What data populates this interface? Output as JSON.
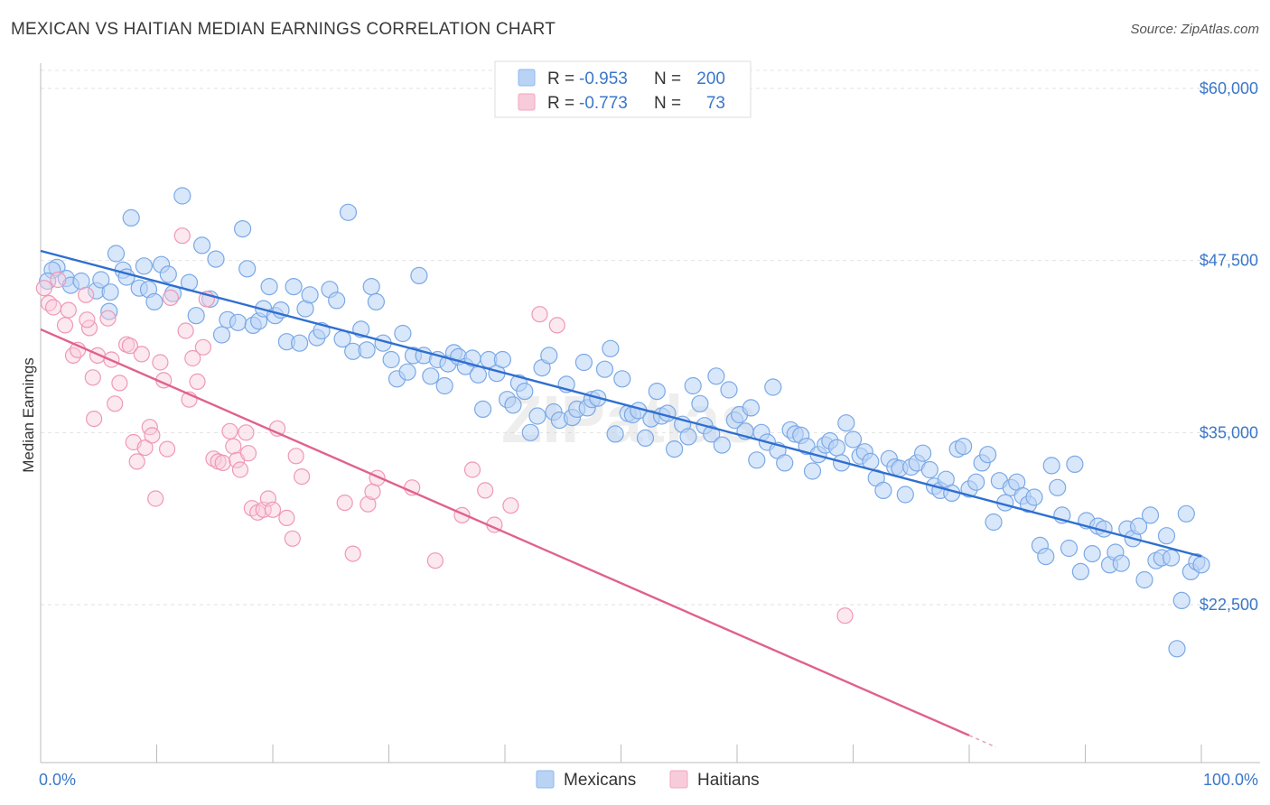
{
  "title": "MEXICAN VS HAITIAN MEDIAN EARNINGS CORRELATION CHART",
  "source": "Source: ZipAtlas.com",
  "watermark": "ZIPatlas",
  "chart_data": {
    "type": "scatter",
    "ylabel": "Median Earnings",
    "xlim": [
      0,
      100
    ],
    "ylim": [
      12000,
      62000
    ],
    "x_tick_labels": {
      "left": "0.0%",
      "right": "100.0%"
    },
    "y_ticks": [
      {
        "value": 60000,
        "label": "$60,000"
      },
      {
        "value": 47500,
        "label": "$47,500"
      },
      {
        "value": 35000,
        "label": "$35,000"
      },
      {
        "value": 22500,
        "label": "$22,500"
      }
    ],
    "grid": true,
    "legend_position": "top-center",
    "legend": [
      {
        "r_label": "R =",
        "r_value": "-0.953",
        "n_label": "N =",
        "n_value": "200"
      },
      {
        "r_label": "R =",
        "r_value": "-0.773",
        "n_label": "N =",
        "n_value": "73"
      }
    ],
    "series": [
      {
        "name": "Mexicans",
        "color": "#8ab8f0",
        "line_color": "#2f6fd0",
        "trend": {
          "x0": 0,
          "y0": 48200,
          "x1": 100,
          "y1": 26000
        },
        "points": [
          [
            1.4,
            47.0
          ],
          [
            2.2,
            46.2
          ],
          [
            2.6,
            45.7
          ],
          [
            3.5,
            46.0
          ],
          [
            4.8,
            45.3
          ],
          [
            5.2,
            46.1
          ],
          [
            5.9,
            43.8
          ],
          [
            6.0,
            45.2
          ],
          [
            6.5,
            48.0
          ],
          [
            7.1,
            46.8
          ],
          [
            7.4,
            46.3
          ],
          [
            7.8,
            50.6
          ],
          [
            8.5,
            45.5
          ],
          [
            8.9,
            47.1
          ],
          [
            9.3,
            45.4
          ],
          [
            9.8,
            44.5
          ],
          [
            10.4,
            47.2
          ],
          [
            11.0,
            46.5
          ],
          [
            11.4,
            45.1
          ],
          [
            12.2,
            52.2
          ],
          [
            12.8,
            45.9
          ],
          [
            13.4,
            43.5
          ],
          [
            13.9,
            48.6
          ],
          [
            14.6,
            44.7
          ],
          [
            15.1,
            47.6
          ],
          [
            15.6,
            42.1
          ],
          [
            16.1,
            43.2
          ],
          [
            17.0,
            43.0
          ],
          [
            17.4,
            49.8
          ],
          [
            17.8,
            46.9
          ],
          [
            18.3,
            42.8
          ],
          [
            18.8,
            43.1
          ],
          [
            19.2,
            44.0
          ],
          [
            19.7,
            45.6
          ],
          [
            20.2,
            43.5
          ],
          [
            20.7,
            43.9
          ],
          [
            21.2,
            41.6
          ],
          [
            21.8,
            45.6
          ],
          [
            22.3,
            41.5
          ],
          [
            22.8,
            44.0
          ],
          [
            23.2,
            45.0
          ],
          [
            23.8,
            41.9
          ],
          [
            24.2,
            42.4
          ],
          [
            24.9,
            45.4
          ],
          [
            25.5,
            44.6
          ],
          [
            26.0,
            41.8
          ],
          [
            26.5,
            51.0
          ],
          [
            26.9,
            40.9
          ],
          [
            27.6,
            42.5
          ],
          [
            28.1,
            41.0
          ],
          [
            28.5,
            45.6
          ],
          [
            28.9,
            44.5
          ],
          [
            29.5,
            41.5
          ],
          [
            30.2,
            40.3
          ],
          [
            30.7,
            38.9
          ],
          [
            31.2,
            42.2
          ],
          [
            31.6,
            39.4
          ],
          [
            32.1,
            40.6
          ],
          [
            32.6,
            46.4
          ],
          [
            33.0,
            40.6
          ],
          [
            33.6,
            39.1
          ],
          [
            34.2,
            40.3
          ],
          [
            34.8,
            38.4
          ],
          [
            35.1,
            40.0
          ],
          [
            35.6,
            40.8
          ],
          [
            36.0,
            40.5
          ],
          [
            36.6,
            39.8
          ],
          [
            37.2,
            40.4
          ],
          [
            37.7,
            39.2
          ],
          [
            38.1,
            36.7
          ],
          [
            38.6,
            40.3
          ],
          [
            39.3,
            39.3
          ],
          [
            39.8,
            40.3
          ],
          [
            40.2,
            37.4
          ],
          [
            40.7,
            37.0
          ],
          [
            41.2,
            38.6
          ],
          [
            41.7,
            38.0
          ],
          [
            42.2,
            35.0
          ],
          [
            42.8,
            36.2
          ],
          [
            43.2,
            39.7
          ],
          [
            43.8,
            40.6
          ],
          [
            44.2,
            36.5
          ],
          [
            44.7,
            35.9
          ],
          [
            45.3,
            38.5
          ],
          [
            45.8,
            36.1
          ],
          [
            46.2,
            36.7
          ],
          [
            46.8,
            40.1
          ],
          [
            47.1,
            36.8
          ],
          [
            47.5,
            37.4
          ],
          [
            48.0,
            37.5
          ],
          [
            48.6,
            39.6
          ],
          [
            49.1,
            41.1
          ],
          [
            49.5,
            34.9
          ],
          [
            50.1,
            38.9
          ],
          [
            50.6,
            36.4
          ],
          [
            51.0,
            36.3
          ],
          [
            51.5,
            36.6
          ],
          [
            52.1,
            34.6
          ],
          [
            52.6,
            36.0
          ],
          [
            53.1,
            38.0
          ],
          [
            53.5,
            36.2
          ],
          [
            54.0,
            36.4
          ],
          [
            54.6,
            33.8
          ],
          [
            55.3,
            35.6
          ],
          [
            55.8,
            34.7
          ],
          [
            56.2,
            38.4
          ],
          [
            56.8,
            37.1
          ],
          [
            57.2,
            35.5
          ],
          [
            57.8,
            34.9
          ],
          [
            58.2,
            39.1
          ],
          [
            58.7,
            34.1
          ],
          [
            59.3,
            38.1
          ],
          [
            59.8,
            35.9
          ],
          [
            60.2,
            36.3
          ],
          [
            60.7,
            35.1
          ],
          [
            61.2,
            36.8
          ],
          [
            61.7,
            33.0
          ],
          [
            62.1,
            35.0
          ],
          [
            62.6,
            34.3
          ],
          [
            63.1,
            38.3
          ],
          [
            63.5,
            33.7
          ],
          [
            64.1,
            32.8
          ],
          [
            64.6,
            35.2
          ],
          [
            65.0,
            34.9
          ],
          [
            65.5,
            34.8
          ],
          [
            66.0,
            34.0
          ],
          [
            66.5,
            32.2
          ],
          [
            67.0,
            33.4
          ],
          [
            67.6,
            34.1
          ],
          [
            68.0,
            34.4
          ],
          [
            68.6,
            33.9
          ],
          [
            69.0,
            32.8
          ],
          [
            69.4,
            35.7
          ],
          [
            70.0,
            34.5
          ],
          [
            70.6,
            33.3
          ],
          [
            71.0,
            33.6
          ],
          [
            71.5,
            32.9
          ],
          [
            72.0,
            31.7
          ],
          [
            72.6,
            30.8
          ],
          [
            73.1,
            33.1
          ],
          [
            73.6,
            32.5
          ],
          [
            74.0,
            32.4
          ],
          [
            74.5,
            30.5
          ],
          [
            75.0,
            32.5
          ],
          [
            75.5,
            32.8
          ],
          [
            76.0,
            33.5
          ],
          [
            76.6,
            32.3
          ],
          [
            77.0,
            31.1
          ],
          [
            77.5,
            30.8
          ],
          [
            78.0,
            31.6
          ],
          [
            78.5,
            30.6
          ],
          [
            79.0,
            33.8
          ],
          [
            79.5,
            34.0
          ],
          [
            80.0,
            30.9
          ],
          [
            80.6,
            31.4
          ],
          [
            81.1,
            32.8
          ],
          [
            81.6,
            33.4
          ],
          [
            82.1,
            28.5
          ],
          [
            82.6,
            31.5
          ],
          [
            83.1,
            29.9
          ],
          [
            83.6,
            31.0
          ],
          [
            84.1,
            31.4
          ],
          [
            84.6,
            30.4
          ],
          [
            85.1,
            29.8
          ],
          [
            85.6,
            30.3
          ],
          [
            86.1,
            26.8
          ],
          [
            86.6,
            26.0
          ],
          [
            87.1,
            32.6
          ],
          [
            87.6,
            31.0
          ],
          [
            88.0,
            29.0
          ],
          [
            88.6,
            26.6
          ],
          [
            89.1,
            32.7
          ],
          [
            89.6,
            24.9
          ],
          [
            90.1,
            28.6
          ],
          [
            90.6,
            26.2
          ],
          [
            91.1,
            28.2
          ],
          [
            91.6,
            28.0
          ],
          [
            92.1,
            25.4
          ],
          [
            92.6,
            26.3
          ],
          [
            93.1,
            25.5
          ],
          [
            93.6,
            28.0
          ],
          [
            94.1,
            27.3
          ],
          [
            94.6,
            28.2
          ],
          [
            95.1,
            24.3
          ],
          [
            95.6,
            29.0
          ],
          [
            96.1,
            25.7
          ],
          [
            96.6,
            25.9
          ],
          [
            97.0,
            27.5
          ],
          [
            97.4,
            25.9
          ],
          [
            97.9,
            19.3
          ],
          [
            98.3,
            22.8
          ],
          [
            98.7,
            29.1
          ],
          [
            99.1,
            24.9
          ],
          [
            99.6,
            25.6
          ],
          [
            100.0,
            25.4
          ],
          [
            1.0,
            46.8
          ],
          [
            0.6,
            46.0
          ]
        ]
      },
      {
        "name": "Haitians",
        "color": "#f3a6bf",
        "line_color": "#e0628b",
        "trend": {
          "x0": 0,
          "y0": 42500,
          "x1": 80,
          "y1": 13000
        },
        "points": [
          [
            0.3,
            45.5
          ],
          [
            0.7,
            44.4
          ],
          [
            1.1,
            44.1
          ],
          [
            1.5,
            46.1
          ],
          [
            2.1,
            42.8
          ],
          [
            2.4,
            43.9
          ],
          [
            2.8,
            40.6
          ],
          [
            3.2,
            41.0
          ],
          [
            3.9,
            45.0
          ],
          [
            4.2,
            42.6
          ],
          [
            4.5,
            39.0
          ],
          [
            4.9,
            40.6
          ],
          [
            4.6,
            36.0
          ],
          [
            5.8,
            43.3
          ],
          [
            6.1,
            40.3
          ],
          [
            6.4,
            37.1
          ],
          [
            6.8,
            38.6
          ],
          [
            7.4,
            41.4
          ],
          [
            7.7,
            41.3
          ],
          [
            8.0,
            34.3
          ],
          [
            8.3,
            32.9
          ],
          [
            8.7,
            40.7
          ],
          [
            9.0,
            33.9
          ],
          [
            9.4,
            35.4
          ],
          [
            9.6,
            34.8
          ],
          [
            9.9,
            30.2
          ],
          [
            10.3,
            40.1
          ],
          [
            10.6,
            38.8
          ],
          [
            10.9,
            33.8
          ],
          [
            11.2,
            44.8
          ],
          [
            12.2,
            49.3
          ],
          [
            12.5,
            42.4
          ],
          [
            12.8,
            37.4
          ],
          [
            13.1,
            40.4
          ],
          [
            13.5,
            38.7
          ],
          [
            14.0,
            41.2
          ],
          [
            14.3,
            44.7
          ],
          [
            14.9,
            33.1
          ],
          [
            15.3,
            32.9
          ],
          [
            15.7,
            32.8
          ],
          [
            16.3,
            35.1
          ],
          [
            16.6,
            34.0
          ],
          [
            16.9,
            33.0
          ],
          [
            17.2,
            32.3
          ],
          [
            17.7,
            35.0
          ],
          [
            17.9,
            33.5
          ],
          [
            18.2,
            29.5
          ],
          [
            18.7,
            29.2
          ],
          [
            19.2,
            29.4
          ],
          [
            19.6,
            30.2
          ],
          [
            20.0,
            29.4
          ],
          [
            20.4,
            35.3
          ],
          [
            21.2,
            28.8
          ],
          [
            21.7,
            27.3
          ],
          [
            22.0,
            33.3
          ],
          [
            22.5,
            31.8
          ],
          [
            26.2,
            29.9
          ],
          [
            26.9,
            26.2
          ],
          [
            28.2,
            29.8
          ],
          [
            28.6,
            30.7
          ],
          [
            29.0,
            31.7
          ],
          [
            32.0,
            31.0
          ],
          [
            34.0,
            25.7
          ],
          [
            36.3,
            29.0
          ],
          [
            37.2,
            32.3
          ],
          [
            38.3,
            30.8
          ],
          [
            39.1,
            28.3
          ],
          [
            40.5,
            29.7
          ],
          [
            43.0,
            43.6
          ],
          [
            44.5,
            42.8
          ],
          [
            69.3,
            21.7
          ],
          [
            4.0,
            43.2
          ]
        ]
      }
    ]
  }
}
